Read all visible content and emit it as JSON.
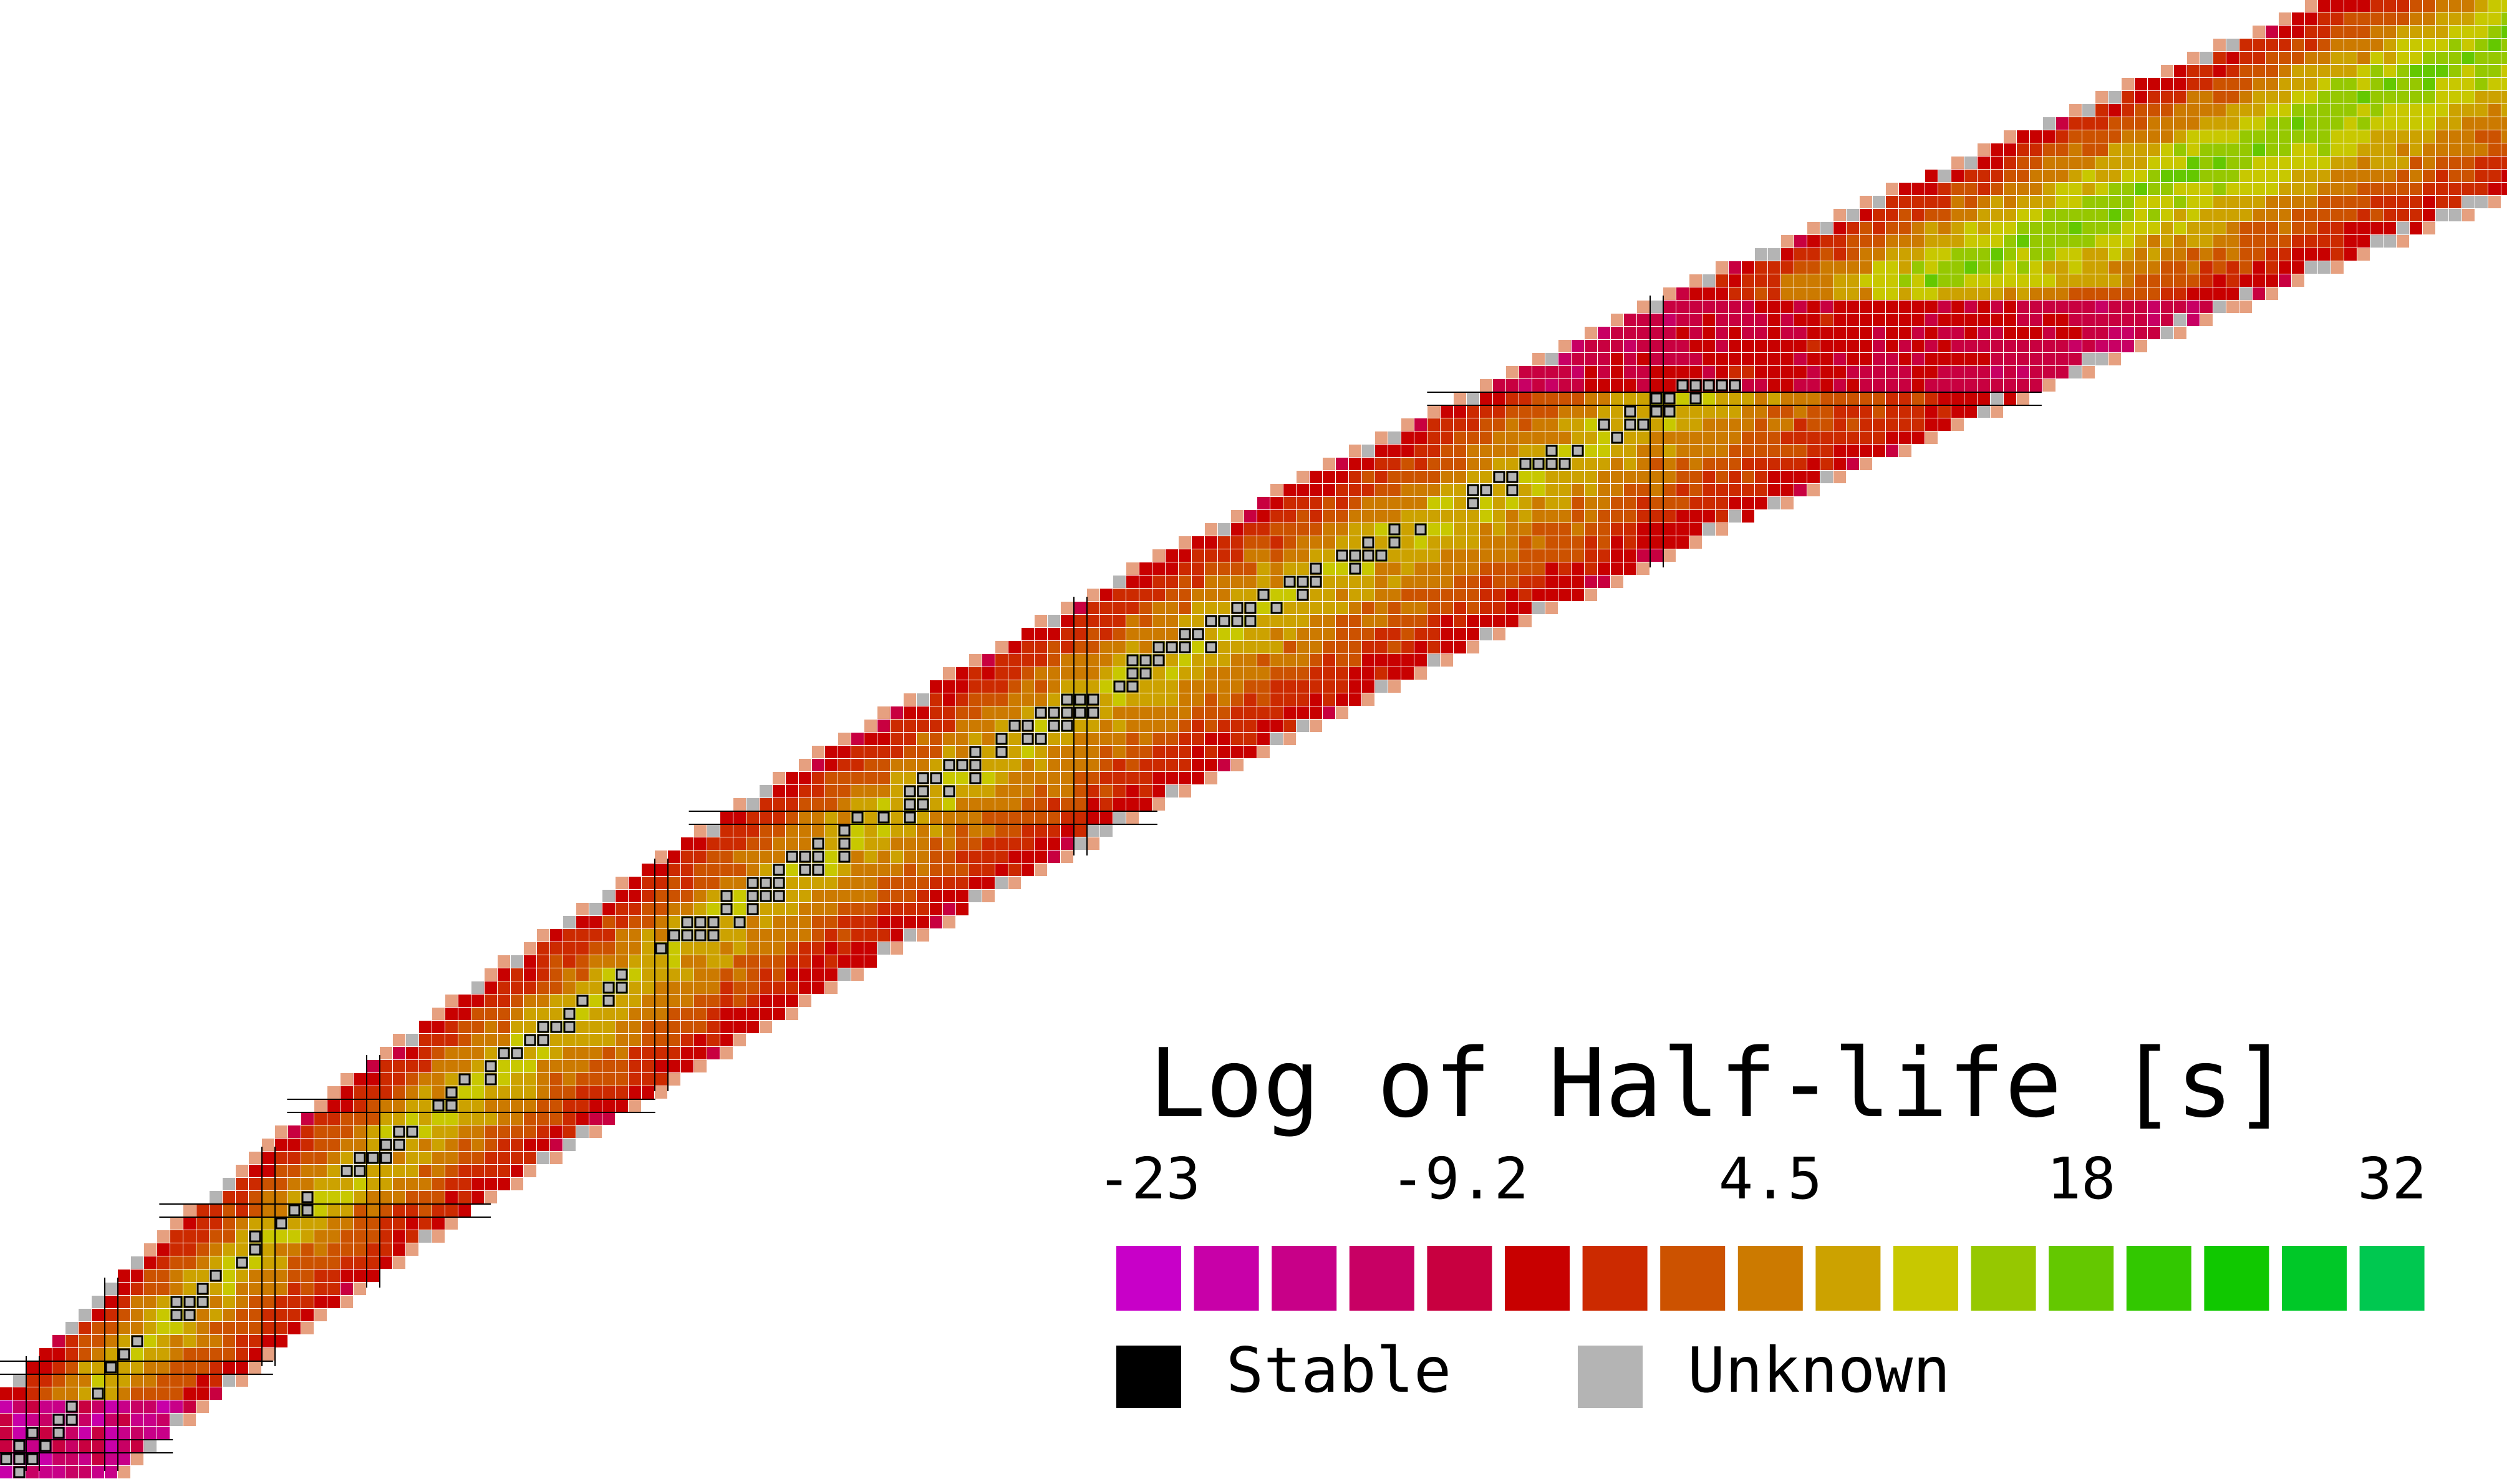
{
  "chart_data": {
    "type": "heatmap",
    "title": "Log of Half-life [s]",
    "colorbar": {
      "min": -23,
      "max": 32,
      "tick_labels": [
        "-23",
        "-9.2",
        "4.5",
        "18",
        "32"
      ],
      "colors": [
        "#c800c8",
        "#c800a8",
        "#c80088",
        "#c80064",
        "#c80040",
        "#c80000",
        "#cc2a00",
        "#cc5200",
        "#cc7a00",
        "#cca200",
        "#c8c800",
        "#96c800",
        "#64c800",
        "#32c800",
        "#10c800",
        "#00c828",
        "#00c850"
      ]
    },
    "legend": [
      {
        "label": "Stable",
        "color": "#000000"
      },
      {
        "label": "Unknown",
        "color": "#b4b4b4"
      }
    ],
    "magic_numbers": [
      2,
      8,
      20,
      28,
      50,
      82,
      126
    ]
  }
}
